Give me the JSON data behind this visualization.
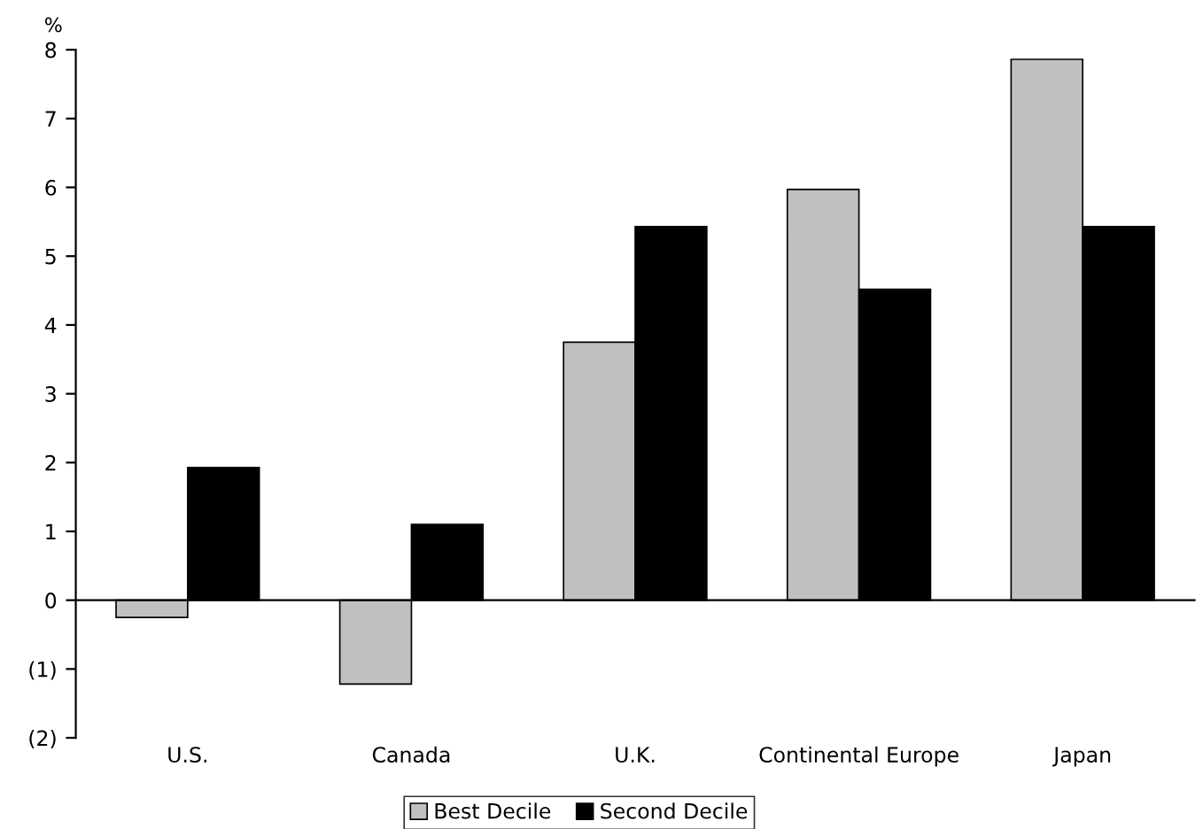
{
  "chart_data": {
    "type": "bar",
    "ylabel": "%",
    "categories": [
      "U.S.",
      "Canada",
      "U.K.",
      "Continental Europe",
      "Japan"
    ],
    "series": [
      {
        "name": "Best Decile",
        "color": "#c0c0c0",
        "values": [
          -0.25,
          -1.22,
          3.75,
          5.97,
          7.86
        ]
      },
      {
        "name": "Second Decile",
        "color": "#000000",
        "values": [
          1.93,
          1.1,
          5.43,
          4.52,
          5.43
        ]
      }
    ],
    "ylim": [
      -2,
      8
    ],
    "yticks": [
      {
        "value": -2,
        "label": "(2)"
      },
      {
        "value": -1,
        "label": "(1)"
      },
      0,
      1,
      2,
      3,
      4,
      5,
      6,
      7,
      8
    ],
    "legend": "bottom"
  }
}
